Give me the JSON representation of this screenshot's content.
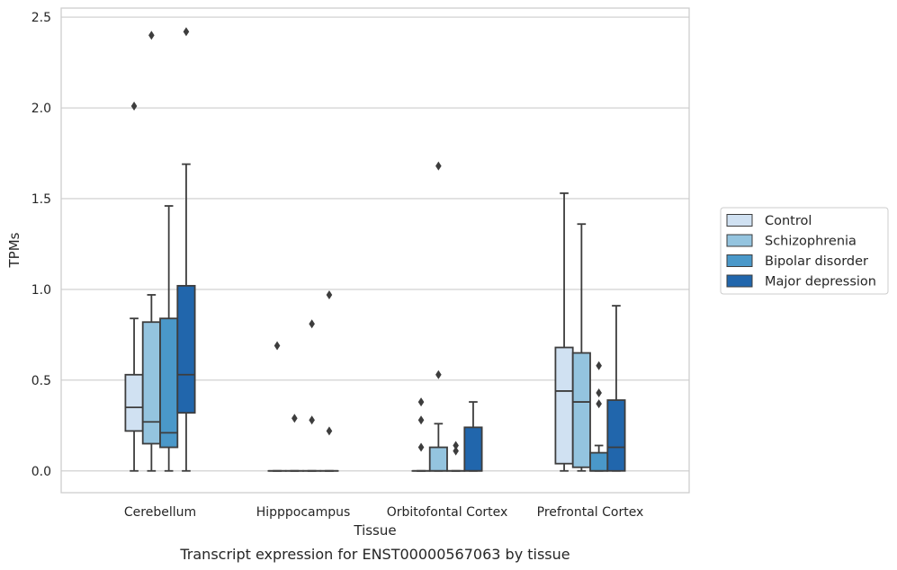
{
  "caption": "Transcript expression for ENST00000567063 by tissue",
  "chart_data": {
    "type": "boxplot",
    "xlabel": "Tissue",
    "ylabel": "TPMs",
    "ylim": [
      -0.12,
      2.55
    ],
    "yticks": [
      "0.0",
      "0.5",
      "1.0",
      "1.5",
      "2.0",
      "2.5"
    ],
    "grid": true,
    "legend_position": "right",
    "categories": [
      "Cerebellum",
      "Hipppocampus",
      "Orbitofontal Cortex",
      "Prefrontal Cortex"
    ],
    "series": [
      {
        "name": "Control",
        "color": "#d0e1f2",
        "boxes": [
          {
            "whislo": 0.0,
            "q1": 0.22,
            "med": 0.35,
            "q3": 0.53,
            "whishi": 0.84,
            "fliers": [
              2.01
            ]
          },
          {
            "whislo": 0.0,
            "q1": 0.0,
            "med": 0.0,
            "q3": 0.0,
            "whishi": 0.0,
            "fliers": [
              0.69
            ]
          },
          {
            "whislo": 0.0,
            "q1": 0.0,
            "med": 0.0,
            "q3": 0.0,
            "whishi": 0.0,
            "fliers": [
              0.13,
              0.28,
              0.38
            ]
          },
          {
            "whislo": 0.0,
            "q1": 0.04,
            "med": 0.44,
            "q3": 0.68,
            "whishi": 1.53,
            "fliers": []
          }
        ]
      },
      {
        "name": "Schizophrenia",
        "color": "#94c4df",
        "boxes": [
          {
            "whislo": 0.0,
            "q1": 0.15,
            "med": 0.27,
            "q3": 0.82,
            "whishi": 0.97,
            "fliers": [
              2.4
            ]
          },
          {
            "whislo": 0.0,
            "q1": 0.0,
            "med": 0.0,
            "q3": 0.0,
            "whishi": 0.0,
            "fliers": [
              0.29
            ]
          },
          {
            "whislo": 0.0,
            "q1": 0.0,
            "med": 0.0,
            "q3": 0.13,
            "whishi": 0.26,
            "fliers": [
              0.53,
              1.68
            ]
          },
          {
            "whislo": 0.0,
            "q1": 0.02,
            "med": 0.38,
            "q3": 0.65,
            "whishi": 1.36,
            "fliers": []
          }
        ]
      },
      {
        "name": "Bipolar disorder",
        "color": "#4a98c9",
        "boxes": [
          {
            "whislo": 0.0,
            "q1": 0.13,
            "med": 0.21,
            "q3": 0.84,
            "whishi": 1.46,
            "fliers": []
          },
          {
            "whislo": 0.0,
            "q1": 0.0,
            "med": 0.0,
            "q3": 0.0,
            "whishi": 0.0,
            "fliers": [
              0.28,
              0.81
            ]
          },
          {
            "whislo": 0.0,
            "q1": 0.0,
            "med": 0.0,
            "q3": 0.0,
            "whishi": 0.0,
            "fliers": [
              0.11,
              0.14
            ]
          },
          {
            "whislo": 0.0,
            "q1": 0.0,
            "med": 0.0,
            "q3": 0.1,
            "whishi": 0.14,
            "fliers": [
              0.37,
              0.43,
              0.58
            ]
          }
        ]
      },
      {
        "name": "Major depression",
        "color": "#2166ac",
        "boxes": [
          {
            "whislo": 0.0,
            "q1": 0.32,
            "med": 0.53,
            "q3": 1.02,
            "whishi": 1.69,
            "fliers": [
              2.42
            ]
          },
          {
            "whislo": 0.0,
            "q1": 0.0,
            "med": 0.0,
            "q3": 0.0,
            "whishi": 0.0,
            "fliers": [
              0.22,
              0.97
            ]
          },
          {
            "whislo": 0.0,
            "q1": 0.0,
            "med": 0.0,
            "q3": 0.24,
            "whishi": 0.38,
            "fliers": []
          },
          {
            "whislo": 0.0,
            "q1": 0.0,
            "med": 0.13,
            "q3": 0.39,
            "whishi": 0.91,
            "fliers": []
          }
        ]
      }
    ]
  }
}
